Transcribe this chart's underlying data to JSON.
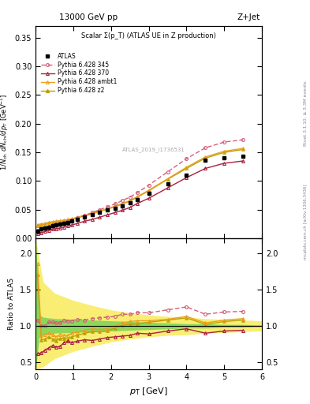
{
  "title_left": "13000 GeV pp",
  "title_right": "Z+Jet",
  "plot_title": "Scalar Σ(p_T) (ATLAS UE in Z production)",
  "ylabel_main": "1/N_{ch} dN_{ch}/dp_T [GeV⁻¹]",
  "ylabel_ratio": "Ratio to ATLAS",
  "xlabel": "p_T [GeV]",
  "right_label_top": "Rivet 3.1.10, ≥ 3.3M events",
  "right_label_bot": "mcplots.cern.ch [arXiv:1306.3436]",
  "watermark": "ATLAS_2019_I1736531",
  "atlas_x": [
    0.05,
    0.15,
    0.25,
    0.35,
    0.45,
    0.55,
    0.65,
    0.75,
    0.85,
    0.95,
    1.1,
    1.3,
    1.5,
    1.7,
    1.9,
    2.1,
    2.3,
    2.5,
    2.7,
    3.0,
    3.5,
    4.0,
    4.5,
    5.0,
    5.5
  ],
  "atlas_y": [
    0.013,
    0.016,
    0.018,
    0.02,
    0.022,
    0.024,
    0.025,
    0.026,
    0.028,
    0.03,
    0.033,
    0.037,
    0.041,
    0.045,
    0.049,
    0.053,
    0.057,
    0.062,
    0.068,
    0.079,
    0.095,
    0.11,
    0.136,
    0.141,
    0.143
  ],
  "py345_x": [
    0.05,
    0.15,
    0.25,
    0.35,
    0.45,
    0.55,
    0.65,
    0.75,
    0.85,
    0.95,
    1.1,
    1.3,
    1.5,
    1.7,
    1.9,
    2.1,
    2.3,
    2.5,
    2.7,
    3.0,
    3.5,
    4.0,
    4.5,
    5.0,
    5.5
  ],
  "py345_y": [
    0.014,
    0.016,
    0.018,
    0.021,
    0.023,
    0.025,
    0.026,
    0.028,
    0.03,
    0.032,
    0.036,
    0.04,
    0.045,
    0.05,
    0.055,
    0.06,
    0.066,
    0.072,
    0.08,
    0.093,
    0.116,
    0.139,
    0.158,
    0.168,
    0.172
  ],
  "py370_x": [
    0.05,
    0.15,
    0.25,
    0.35,
    0.45,
    0.55,
    0.65,
    0.75,
    0.85,
    0.95,
    1.1,
    1.3,
    1.5,
    1.7,
    1.9,
    2.1,
    2.3,
    2.5,
    2.7,
    3.0,
    3.5,
    4.0,
    4.5,
    5.0,
    5.5
  ],
  "py370_y": [
    0.008,
    0.01,
    0.012,
    0.014,
    0.016,
    0.017,
    0.018,
    0.02,
    0.022,
    0.023,
    0.026,
    0.03,
    0.033,
    0.037,
    0.041,
    0.045,
    0.049,
    0.054,
    0.061,
    0.07,
    0.088,
    0.106,
    0.122,
    0.131,
    0.135
  ],
  "pyambt1_x": [
    0.05,
    0.15,
    0.25,
    0.35,
    0.45,
    0.55,
    0.65,
    0.75,
    0.85,
    0.95,
    1.1,
    1.3,
    1.5,
    1.7,
    1.9,
    2.1,
    2.3,
    2.5,
    2.7,
    3.0,
    3.5,
    4.0,
    4.5,
    5.0,
    5.5
  ],
  "pyambt1_y": [
    0.024,
    0.025,
    0.026,
    0.028,
    0.029,
    0.03,
    0.031,
    0.032,
    0.033,
    0.034,
    0.037,
    0.04,
    0.044,
    0.048,
    0.052,
    0.056,
    0.061,
    0.066,
    0.073,
    0.084,
    0.104,
    0.124,
    0.142,
    0.152,
    0.157
  ],
  "pyz2_x": [
    0.05,
    0.15,
    0.25,
    0.35,
    0.45,
    0.55,
    0.65,
    0.75,
    0.85,
    0.95,
    1.1,
    1.3,
    1.5,
    1.7,
    1.9,
    2.1,
    2.3,
    2.5,
    2.7,
    3.0,
    3.5,
    4.0,
    4.5,
    5.0,
    5.5
  ],
  "pyz2_y": [
    0.022,
    0.023,
    0.025,
    0.027,
    0.028,
    0.029,
    0.03,
    0.031,
    0.032,
    0.033,
    0.036,
    0.039,
    0.043,
    0.047,
    0.051,
    0.055,
    0.06,
    0.065,
    0.072,
    0.083,
    0.103,
    0.122,
    0.14,
    0.15,
    0.155
  ],
  "color_py345": "#d45f7a",
  "color_py370": "#aa2040",
  "color_pyambt1": "#e8a020",
  "color_pyz2": "#b8a000",
  "color_atlas": "#000000",
  "ratio_x": [
    0.05,
    0.15,
    0.25,
    0.35,
    0.45,
    0.55,
    0.65,
    0.75,
    0.85,
    0.95,
    1.1,
    1.3,
    1.5,
    1.7,
    1.9,
    2.1,
    2.3,
    2.5,
    2.7,
    3.0,
    3.5,
    4.0,
    4.5,
    5.0,
    5.5
  ],
  "ratio_py345_y": [
    1.08,
    1.0,
    1.0,
    1.05,
    1.05,
    1.04,
    1.04,
    1.08,
    1.07,
    1.07,
    1.09,
    1.08,
    1.1,
    1.11,
    1.12,
    1.13,
    1.16,
    1.16,
    1.18,
    1.18,
    1.22,
    1.26,
    1.16,
    1.19,
    1.2
  ],
  "ratio_py370_y": [
    0.62,
    0.63,
    0.67,
    0.7,
    0.73,
    0.71,
    0.72,
    0.77,
    0.79,
    0.77,
    0.79,
    0.81,
    0.8,
    0.82,
    0.84,
    0.85,
    0.86,
    0.87,
    0.9,
    0.89,
    0.93,
    0.96,
    0.9,
    0.93,
    0.94
  ],
  "ratio_pyambt1_y": [
    1.85,
    0.87,
    0.88,
    0.9,
    0.88,
    0.85,
    0.88,
    0.87,
    0.87,
    0.9,
    0.91,
    0.94,
    0.96,
    0.95,
    0.96,
    1.0,
    1.04,
    1.06,
    1.07,
    1.07,
    1.09,
    1.13,
    1.04,
    1.08,
    1.1
  ],
  "ratio_pyz2_y": [
    1.7,
    0.81,
    0.82,
    0.85,
    0.82,
    0.8,
    0.83,
    0.83,
    0.82,
    0.85,
    0.87,
    0.9,
    0.92,
    0.92,
    0.93,
    0.97,
    1.01,
    1.02,
    1.03,
    1.05,
    1.08,
    1.11,
    1.02,
    1.06,
    1.08
  ],
  "yellow_band_x": [
    0.0,
    0.1,
    0.2,
    0.5,
    1.0,
    1.5,
    2.0,
    2.5,
    3.0,
    3.5,
    4.0,
    4.5,
    5.0,
    5.5,
    6.0
  ],
  "yellow_upper": [
    2.2,
    1.9,
    1.6,
    1.45,
    1.35,
    1.28,
    1.22,
    1.18,
    1.15,
    1.13,
    1.12,
    1.1,
    1.09,
    1.08,
    1.07
  ],
  "yellow_lower": [
    0.4,
    0.42,
    0.44,
    0.55,
    0.65,
    0.72,
    0.78,
    0.82,
    0.85,
    0.87,
    0.88,
    0.9,
    0.91,
    0.92,
    0.93
  ],
  "green_upper": [
    2.2,
    1.15,
    1.12,
    1.1,
    1.09,
    1.08,
    1.07,
    1.06,
    1.05,
    1.04,
    1.03,
    1.03,
    1.02,
    1.02,
    1.01
  ],
  "green_lower": [
    0.4,
    0.85,
    0.88,
    0.9,
    0.91,
    0.92,
    0.93,
    0.94,
    0.95,
    0.96,
    0.97,
    0.97,
    0.98,
    0.98,
    0.99
  ],
  "xlim": [
    0.0,
    6.0
  ],
  "ylim_main": [
    0.0,
    0.37
  ],
  "ylim_ratio": [
    0.4,
    2.2
  ],
  "yticks_main": [
    0.0,
    0.05,
    0.1,
    0.15,
    0.2,
    0.25,
    0.3,
    0.35
  ],
  "yticks_ratio": [
    0.5,
    1.0,
    1.5,
    2.0
  ]
}
